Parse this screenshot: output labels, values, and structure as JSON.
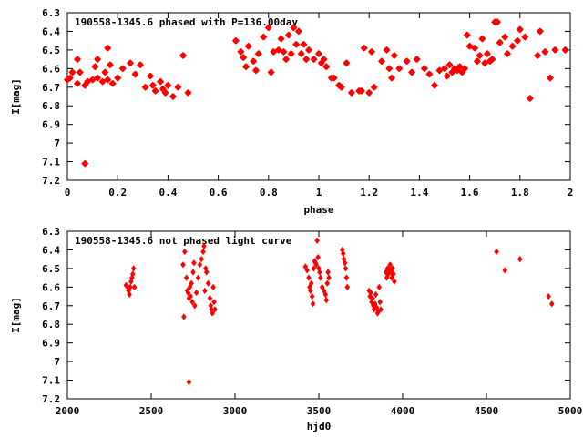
{
  "chart_data": [
    {
      "type": "scatter",
      "title": "190558-1345.6 phased with P=136.00day",
      "xlabel": "phase",
      "ylabel": "I[mag]",
      "xlim": [
        0,
        2
      ],
      "ylim": [
        6.3,
        7.2
      ],
      "y_inverted": true,
      "grid": false,
      "marker": "star",
      "color": "#ff0000",
      "x_ticks": [
        "0",
        "0.2",
        "0.4",
        "0.6",
        "0.8",
        "1",
        "1.2",
        "1.4",
        "1.6",
        "1.8",
        "2"
      ],
      "y_ticks": [
        "6.3",
        "6.4",
        "6.5",
        "6.6",
        "6.7",
        "6.8",
        "6.9",
        "7",
        "7.1",
        "7.2"
      ],
      "series": [
        {
          "x": [
            0.0,
            0.01,
            0.02,
            0.04,
            0.05,
            0.07,
            0.08,
            0.1,
            0.11,
            0.12,
            0.14,
            0.15,
            0.16,
            0.17,
            0.18,
            0.2,
            0.22,
            0.25,
            0.27,
            0.29,
            0.31,
            0.33,
            0.34,
            0.35,
            0.37,
            0.38,
            0.39,
            0.4,
            0.42,
            0.44,
            0.46,
            0.48,
            0.07,
            0.04,
            0.12,
            0.16,
            0.67,
            0.69,
            0.7,
            0.71,
            0.72,
            0.74,
            0.75,
            0.76,
            0.78,
            0.8,
            0.81,
            0.82,
            0.84,
            0.85,
            0.86,
            0.87,
            0.88,
            0.89,
            0.9,
            0.91,
            0.92,
            0.93,
            0.94,
            0.95,
            0.96,
            0.98,
            1.0,
            1.01,
            1.02,
            1.03,
            1.05,
            1.06,
            1.08,
            1.09,
            1.11,
            1.13,
            1.16,
            1.17,
            1.18,
            1.2,
            1.21,
            1.22,
            1.25,
            1.27,
            1.28,
            1.29,
            1.3,
            1.32,
            1.35,
            1.37,
            1.39,
            1.42,
            1.44,
            1.46,
            1.48,
            1.5,
            1.51,
            1.52,
            1.53,
            1.54,
            1.55,
            1.56,
            1.57,
            1.58,
            1.59,
            1.6,
            1.62,
            1.63,
            1.64,
            1.65,
            1.66,
            1.67,
            1.68,
            1.69,
            1.7,
            1.71,
            1.72,
            1.74,
            1.75,
            1.77,
            1.79,
            1.8,
            1.82,
            1.84,
            1.87,
            1.88,
            1.9,
            1.92,
            1.94,
            1.98
          ],
          "y": [
            6.66,
            6.65,
            6.62,
            6.68,
            6.62,
            6.69,
            6.67,
            6.66,
            6.59,
            6.65,
            6.67,
            6.62,
            6.66,
            6.58,
            6.68,
            6.65,
            6.6,
            6.57,
            6.63,
            6.58,
            6.7,
            6.64,
            6.69,
            6.72,
            6.67,
            6.71,
            6.73,
            6.69,
            6.75,
            6.7,
            6.53,
            6.73,
            7.11,
            6.55,
            6.55,
            6.49,
            6.45,
            6.51,
            6.54,
            6.59,
            6.48,
            6.56,
            6.61,
            6.52,
            6.43,
            6.38,
            6.62,
            6.51,
            6.5,
            6.44,
            6.51,
            6.55,
            6.42,
            6.52,
            6.38,
            6.47,
            6.4,
            6.52,
            6.47,
            6.55,
            6.5,
            6.55,
            6.52,
            6.57,
            6.55,
            6.59,
            6.65,
            6.65,
            6.69,
            6.7,
            6.57,
            6.73,
            6.72,
            6.72,
            6.49,
            6.73,
            6.51,
            6.7,
            6.56,
            6.5,
            6.6,
            6.65,
            6.53,
            6.6,
            6.56,
            6.62,
            6.55,
            6.6,
            6.63,
            6.69,
            6.61,
            6.6,
            6.64,
            6.58,
            6.62,
            6.6,
            6.61,
            6.59,
            6.62,
            6.6,
            6.42,
            6.48,
            6.49,
            6.56,
            6.53,
            6.44,
            6.57,
            6.52,
            6.56,
            6.55,
            6.35,
            6.35,
            6.46,
            6.43,
            6.52,
            6.48,
            6.45,
            6.39,
            6.43,
            6.76,
            6.53,
            6.4,
            6.51,
            6.65,
            6.5,
            6.5
          ]
        }
      ]
    },
    {
      "type": "scatter",
      "title": "190558-1345.6 not phased light curve",
      "xlabel": "hjd0",
      "ylabel": "I[mag]",
      "xlim": [
        2000,
        5000
      ],
      "ylim": [
        6.3,
        7.2
      ],
      "y_inverted": true,
      "grid": false,
      "marker": "diamond",
      "color": "#ff0000",
      "x_ticks": [
        "2000",
        "2500",
        "3000",
        "3500",
        "4000",
        "4500",
        "5000"
      ],
      "y_ticks": [
        "6.3",
        "6.4",
        "6.5",
        "6.6",
        "6.7",
        "6.8",
        "6.9",
        "7",
        "7.1",
        "7.2"
      ],
      "series": [
        {
          "x": [
            2350,
            2360,
            2365,
            2370,
            2375,
            2380,
            2385,
            2390,
            2395,
            2400,
            2690,
            2695,
            2700,
            2710,
            2715,
            2720,
            2725,
            2730,
            2735,
            2740,
            2745,
            2750,
            2755,
            2760,
            2770,
            2780,
            2790,
            2800,
            2810,
            2815,
            2820,
            2825,
            2830,
            2840,
            2850,
            2855,
            2860,
            2865,
            2870,
            2875,
            2880,
            2725,
            3420,
            3430,
            3440,
            3445,
            3450,
            3455,
            3460,
            3465,
            3470,
            3475,
            3480,
            3485,
            3490,
            3495,
            3500,
            3505,
            3510,
            3520,
            3530,
            3540,
            3545,
            3550,
            3555,
            3560,
            3640,
            3645,
            3650,
            3655,
            3660,
            3665,
            3670,
            3800,
            3805,
            3810,
            3815,
            3820,
            3825,
            3830,
            3835,
            3840,
            3845,
            3850,
            3855,
            3860,
            3865,
            3870,
            3900,
            3905,
            3910,
            3915,
            3920,
            3925,
            3930,
            3935,
            3940,
            3945,
            3950,
            4560,
            4610,
            4700,
            4870,
            4890
          ],
          "y": [
            6.59,
            6.6,
            6.62,
            6.64,
            6.6,
            6.57,
            6.55,
            6.53,
            6.5,
            6.6,
            6.48,
            6.76,
            6.41,
            6.55,
            6.62,
            6.63,
            6.66,
            6.6,
            6.65,
            6.58,
            6.68,
            6.52,
            6.47,
            6.7,
            6.63,
            6.55,
            6.48,
            6.45,
            6.41,
            6.38,
            6.62,
            6.5,
            6.52,
            6.58,
            6.66,
            6.7,
            6.72,
            6.74,
            6.6,
            6.68,
            6.72,
            7.11,
            6.49,
            6.51,
            6.55,
            6.6,
            6.62,
            6.58,
            6.65,
            6.69,
            6.5,
            6.46,
            6.47,
            6.48,
            6.35,
            6.44,
            6.5,
            6.52,
            6.55,
            6.6,
            6.62,
            6.64,
            6.67,
            6.58,
            6.52,
            6.55,
            6.4,
            6.42,
            6.45,
            6.47,
            6.5,
            6.55,
            6.6,
            6.62,
            6.65,
            6.63,
            6.68,
            6.66,
            6.7,
            6.72,
            6.69,
            6.64,
            6.71,
            6.74,
            6.73,
            6.6,
            6.68,
            6.72,
            6.52,
            6.55,
            6.5,
            6.53,
            6.5,
            6.48,
            6.52,
            6.55,
            6.5,
            6.53,
            6.57,
            6.41,
            6.51,
            6.45,
            6.65,
            6.69
          ]
        }
      ]
    }
  ]
}
